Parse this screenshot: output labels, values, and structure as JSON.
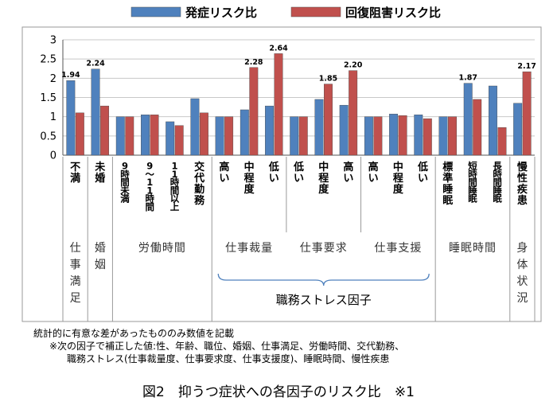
{
  "chart_data": {
    "type": "bar",
    "series": [
      {
        "name": "発症リスク比",
        "color": "#4F81BD",
        "values": [
          1.94,
          2.24,
          1.0,
          1.05,
          0.87,
          1.47,
          1.0,
          1.18,
          1.28,
          1.0,
          1.45,
          1.3,
          1.0,
          1.07,
          1.05,
          1.0,
          1.87,
          1.8,
          1.35
        ]
      },
      {
        "name": "回復阻害リスク比",
        "color": "#C0504D",
        "values": [
          1.1,
          1.28,
          1.0,
          1.05,
          0.77,
          1.1,
          1.0,
          2.28,
          2.64,
          1.0,
          1.85,
          2.2,
          1.0,
          1.03,
          0.95,
          1.0,
          1.45,
          0.72,
          2.17
        ]
      }
    ],
    "categories": [
      "不満",
      "未婚",
      "9時間未満",
      "9～11時間",
      "11時間以上",
      "交代勤務",
      "高い",
      "中程度",
      "低い",
      "低い",
      "中程度",
      "高い",
      "高い",
      "中程度",
      "低い",
      "標準睡眠",
      "短時間睡眠",
      "長時間睡眠",
      "慢性疾患"
    ],
    "groups": [
      {
        "label": "仕事満足",
        "span": 1,
        "vertical": true
      },
      {
        "label": "婚姻",
        "span": 1,
        "vertical": true
      },
      {
        "label": "労働時間",
        "span": 4
      },
      {
        "label": "仕事裁量",
        "span": 3
      },
      {
        "label": "仕事要求",
        "span": 3
      },
      {
        "label": "仕事支援",
        "span": 3
      },
      {
        "label": "睡眠時間",
        "span": 3
      },
      {
        "label": "身体状況",
        "span": 1,
        "vertical": true
      }
    ],
    "bracket_label": "職務ストレス因子",
    "data_labels": [
      {
        "index": 0,
        "series": 0,
        "text": "1.94"
      },
      {
        "index": 1,
        "series": 0,
        "text": "2.24"
      },
      {
        "index": 7,
        "series": 1,
        "text": "2.28"
      },
      {
        "index": 8,
        "series": 1,
        "text": "2.64"
      },
      {
        "index": 10,
        "series": 1,
        "text": "1.85"
      },
      {
        "index": 11,
        "series": 1,
        "text": "2.20"
      },
      {
        "index": 16,
        "series": 0,
        "text": "1.87"
      },
      {
        "index": 18,
        "series": 1,
        "text": "2.17"
      }
    ],
    "yticks": [
      "0",
      "0.5",
      "1",
      "1.5",
      "2",
      "2.5",
      "3"
    ],
    "ylim": [
      0,
      3
    ],
    "title": "",
    "xlabel": "",
    "ylabel": ""
  },
  "notes": {
    "line1": "統計的に有意な差があったもののみ数値を記載",
    "line2": "※次の因子で補正した値:性、年齢、職位、婚姻、仕事満足、労働時間、交代勤務、",
    "line3": "職務ストレス(仕事裁量度、仕事要求度、仕事支援度)、睡眠時間、慢性疾患"
  },
  "caption": "図2　抑うつ症状への各因子のリスク比　※1"
}
